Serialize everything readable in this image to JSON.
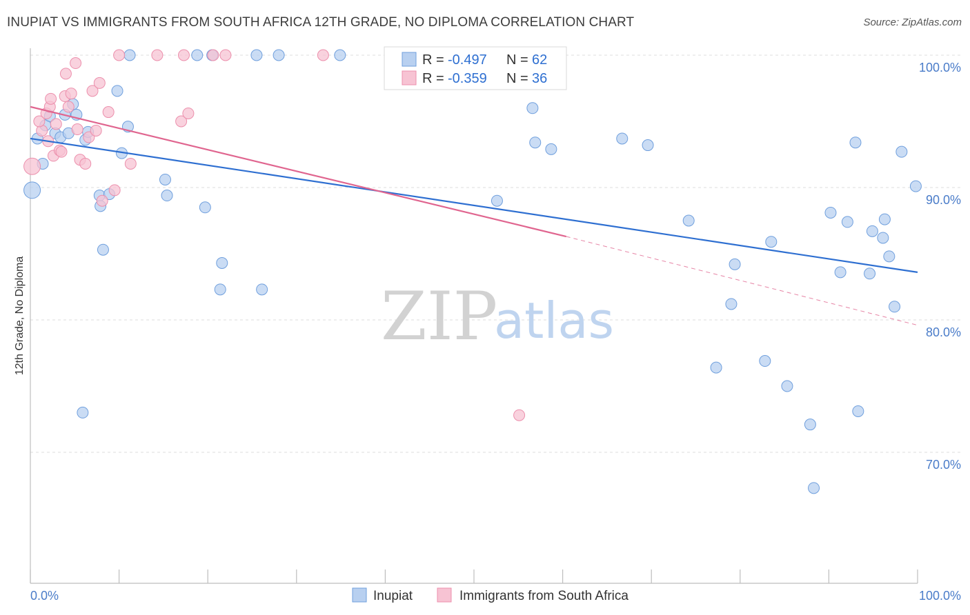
{
  "title": "INUPIAT VS IMMIGRANTS FROM SOUTH AFRICA 12TH GRADE, NO DIPLOMA CORRELATION CHART",
  "source": "Source: ZipAtlas.com",
  "watermark": {
    "zip": "ZIP",
    "atlas": "atlas"
  },
  "colors": {
    "blue_fill": "#b8d0f0",
    "blue_stroke": "#6f9fdd",
    "blue_line": "#2e6fd1",
    "pink_fill": "#f7c3d3",
    "pink_stroke": "#ec8fac",
    "pink_line": "#e0658f",
    "tick": "#4a7cc9",
    "grid": "#dcdcdc"
  },
  "legend_box": {
    "r_label": "R =",
    "n_label": "N =",
    "rows": [
      {
        "r": "-0.497",
        "n": "62",
        "color": "blue"
      },
      {
        "r": "-0.359",
        "n": "36",
        "color": "pink"
      }
    ]
  },
  "chart_data": {
    "type": "scatter",
    "ylabel": "12th Grade, No Diploma",
    "xlabel": "",
    "xlim": [
      0,
      100
    ],
    "ylim": [
      60,
      100
    ],
    "x_tick_labels": [
      {
        "value": 0,
        "label": "0.0%"
      },
      {
        "value": 100,
        "label": "100.0%"
      }
    ],
    "y_tick_labels": [
      {
        "value": 100,
        "label": "100.0%"
      },
      {
        "value": 90,
        "label": "90.0%"
      },
      {
        "value": 80,
        "label": "80.0%"
      },
      {
        "value": 70,
        "label": "70.0%"
      }
    ],
    "series": [
      {
        "name": "Inupiat",
        "color": "blue",
        "trend": {
          "x0": 0,
          "y0": 93.7,
          "x1": 100,
          "y1": 83.6
        },
        "points": [
          [
            0.2,
            89.8
          ],
          [
            0.8,
            93.7
          ],
          [
            1.4,
            91.8
          ],
          [
            1.7,
            94.7
          ],
          [
            2.2,
            95.4
          ],
          [
            2.8,
            94.1
          ],
          [
            3.4,
            93.8
          ],
          [
            3.9,
            95.5
          ],
          [
            4.3,
            94.1
          ],
          [
            4.8,
            96.3
          ],
          [
            5.2,
            95.5
          ],
          [
            6.2,
            93.6
          ],
          [
            6.5,
            94.2
          ],
          [
            7.8,
            89.4
          ],
          [
            7.9,
            88.6
          ],
          [
            8.2,
            85.3
          ],
          [
            8.9,
            89.5
          ],
          [
            9.8,
            97.3
          ],
          [
            10.3,
            92.6
          ],
          [
            11.0,
            94.6
          ],
          [
            11.2,
            100
          ],
          [
            15.2,
            90.6
          ],
          [
            15.4,
            89.4
          ],
          [
            18.8,
            100
          ],
          [
            19.7,
            88.5
          ],
          [
            20.5,
            100
          ],
          [
            21.6,
            84.3
          ],
          [
            21.4,
            82.3
          ],
          [
            25.5,
            100
          ],
          [
            26.1,
            82.3
          ],
          [
            28.0,
            100
          ],
          [
            34.9,
            100
          ],
          [
            47.2,
            100
          ],
          [
            5.9,
            73.0
          ],
          [
            52.6,
            89.0
          ],
          [
            56.6,
            96.0
          ],
          [
            56.9,
            93.4
          ],
          [
            58.7,
            92.9
          ],
          [
            66.7,
            93.7
          ],
          [
            69.6,
            93.2
          ],
          [
            74.2,
            87.5
          ],
          [
            79.4,
            84.2
          ],
          [
            79.0,
            81.2
          ],
          [
            83.5,
            85.9
          ],
          [
            82.8,
            76.9
          ],
          [
            85.3,
            75.0
          ],
          [
            77.3,
            76.4
          ],
          [
            90.2,
            88.1
          ],
          [
            91.3,
            83.6
          ],
          [
            92.1,
            87.4
          ],
          [
            93.0,
            93.4
          ],
          [
            94.6,
            83.5
          ],
          [
            94.9,
            86.7
          ],
          [
            96.1,
            86.2
          ],
          [
            96.3,
            87.6
          ],
          [
            96.8,
            84.8
          ],
          [
            97.4,
            81.0
          ],
          [
            98.2,
            92.7
          ],
          [
            99.8,
            90.1
          ],
          [
            87.9,
            72.1
          ],
          [
            93.3,
            73.1
          ],
          [
            88.3,
            67.3
          ]
        ]
      },
      {
        "name": "Immigrants from South Africa",
        "color": "pink",
        "trend": {
          "x0": 0,
          "y0": 96.1,
          "x1": 60.4,
          "y1": 86.3
        },
        "trend_dashed": {
          "x0": 60.4,
          "y0": 86.3,
          "x1": 100,
          "y1": 79.6
        },
        "points": [
          [
            0.2,
            91.6
          ],
          [
            1.3,
            94.3
          ],
          [
            1.8,
            95.6
          ],
          [
            2.2,
            96.1
          ],
          [
            2.3,
            96.7
          ],
          [
            2.6,
            92.4
          ],
          [
            2.9,
            94.8
          ],
          [
            3.3,
            92.8
          ],
          [
            3.9,
            96.9
          ],
          [
            4.3,
            96.1
          ],
          [
            4.6,
            97.1
          ],
          [
            5.1,
            99.4
          ],
          [
            5.3,
            94.4
          ],
          [
            5.6,
            92.1
          ],
          [
            6.2,
            91.8
          ],
          [
            6.6,
            93.8
          ],
          [
            7.0,
            97.3
          ],
          [
            7.4,
            94.3
          ],
          [
            7.8,
            97.9
          ],
          [
            8.1,
            89.0
          ],
          [
            8.8,
            95.7
          ],
          [
            9.5,
            89.8
          ],
          [
            10.0,
            100
          ],
          [
            11.3,
            91.8
          ],
          [
            14.3,
            100
          ],
          [
            17.0,
            95.0
          ],
          [
            17.3,
            100
          ],
          [
            17.8,
            95.6
          ],
          [
            20.6,
            100
          ],
          [
            22.0,
            100
          ],
          [
            33.0,
            100
          ],
          [
            55.1,
            72.8
          ],
          [
            1.0,
            95.0
          ],
          [
            3.5,
            92.7
          ],
          [
            2.0,
            93.5
          ],
          [
            4.0,
            98.6
          ]
        ]
      }
    ]
  }
}
